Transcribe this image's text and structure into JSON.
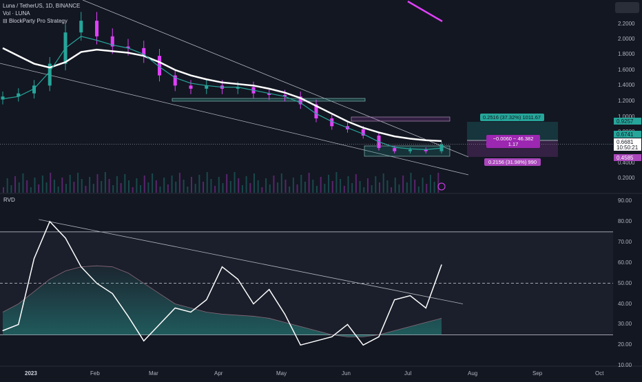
{
  "legend": {
    "symbol": "Luna / TetherUS, 1D, BINANCE",
    "volume": "Vol · LUNA",
    "strategy": "BlockParty Pro Strategy"
  },
  "rvd_label": "RVD",
  "price_axis": {
    "ticks": [
      "2.2000",
      "2.0000",
      "1.8000",
      "1.6000",
      "1.4000",
      "1.2000",
      "1.0000",
      "0.8000",
      "0.4000",
      "0.2000"
    ],
    "badges": [
      {
        "label": "0.9257",
        "color": "#26a69a"
      },
      {
        "label": "0.6741",
        "color": "#26a69a"
      },
      {
        "label": "0.6681",
        "color": "#ffffff"
      },
      {
        "label": "10:50:21",
        "color": "#ffffff"
      },
      {
        "label": "0.4585",
        "color": "#ab47bc"
      }
    ]
  },
  "rvd_axis": {
    "ticks": [
      "90.00",
      "80.00",
      "70.00",
      "60.00",
      "50.00",
      "40.00",
      "30.00",
      "20.00",
      "10.00"
    ]
  },
  "time_axis": {
    "labels": [
      "2023",
      "Feb",
      "Mar",
      "Apr",
      "May",
      "Jun",
      "Jul",
      "Aug",
      "Sep",
      "Oct"
    ]
  },
  "measure_tool": {
    "upper": "0.2516 (37.32%) 1011.67",
    "middle_line1": "−0.0060 ~ 46.382",
    "middle_line2": "1.17",
    "lower": "0.2156 (31.98%) 990"
  },
  "colors": {
    "up": "#26a69a",
    "down": "#e040fb",
    "ma_white": "#ffffff",
    "ma_green": "#26a69a",
    "background": "#131722"
  },
  "chart_data": [
    {
      "type": "line",
      "title": "Luna / TetherUS, 1D, BINANCE",
      "ylabel": "",
      "x": [
        "2023-01-01",
        "2023-01-08",
        "2023-01-15",
        "2023-01-22",
        "2023-01-29",
        "2023-02-05",
        "2023-02-12",
        "2023-02-19",
        "2023-02-26",
        "2023-03-05",
        "2023-03-12",
        "2023-03-19",
        "2023-03-26",
        "2023-04-02",
        "2023-04-09",
        "2023-04-16",
        "2023-04-23",
        "2023-04-30",
        "2023-05-07",
        "2023-05-14",
        "2023-05-21",
        "2023-05-28",
        "2023-06-04",
        "2023-06-11",
        "2023-06-18",
        "2023-06-25",
        "2023-07-02",
        "2023-07-09",
        "2023-07-16"
      ],
      "ylim": [
        0.1,
        2.4
      ],
      "series": [
        {
          "values": [
            1.28,
            1.32,
            1.42,
            1.7,
            2.1,
            2.25,
            2.05,
            1.92,
            1.9,
            1.8,
            1.55,
            1.42,
            1.38,
            1.42,
            1.38,
            1.4,
            1.32,
            1.3,
            1.28,
            1.18,
            1.0,
            0.9,
            0.86,
            0.78,
            0.62,
            0.58,
            0.6,
            0.58,
            0.6681
          ]
        },
        {
          "values": [
            1.9,
            1.8,
            1.7,
            1.65,
            1.72,
            1.85,
            1.88,
            1.86,
            1.84,
            1.8,
            1.72,
            1.62,
            1.55,
            1.5,
            1.46,
            1.44,
            1.42,
            1.38,
            1.33,
            1.26,
            1.16,
            1.06,
            0.96,
            0.88,
            0.82,
            0.77,
            0.74,
            0.72,
            0.71
          ]
        },
        {
          "values": [
            1.25,
            1.28,
            1.38,
            1.6,
            1.9,
            2.05,
            2.0,
            1.94,
            1.9,
            1.82,
            1.66,
            1.52,
            1.45,
            1.42,
            1.4,
            1.4,
            1.36,
            1.32,
            1.28,
            1.2,
            1.06,
            0.96,
            0.88,
            0.8,
            0.7,
            0.63,
            0.61,
            0.6,
            0.62
          ]
        }
      ]
    },
    {
      "type": "line",
      "title": "RVD",
      "ylabel": "",
      "x": [
        "2023-01-01",
        "2023-01-08",
        "2023-01-15",
        "2023-01-22",
        "2023-01-29",
        "2023-02-05",
        "2023-02-12",
        "2023-02-19",
        "2023-02-26",
        "2023-03-05",
        "2023-03-12",
        "2023-03-19",
        "2023-03-26",
        "2023-04-02",
        "2023-04-09",
        "2023-04-16",
        "2023-04-23",
        "2023-04-30",
        "2023-05-07",
        "2023-05-14",
        "2023-05-21",
        "2023-05-28",
        "2023-06-04",
        "2023-06-11",
        "2023-06-18",
        "2023-06-25",
        "2023-07-02",
        "2023-07-09",
        "2023-07-16"
      ],
      "ylim": [
        8,
        92
      ],
      "series": [
        {
          "values": [
            27,
            30,
            62,
            80,
            72,
            58,
            50,
            45,
            34,
            22,
            30,
            38,
            36,
            42,
            58,
            52,
            40,
            47,
            35,
            20,
            22,
            24,
            30,
            20,
            24,
            42,
            44,
            38,
            59
          ]
        },
        {
          "values": [
            36,
            40,
            46,
            52,
            56,
            58,
            58.5,
            58,
            55,
            50,
            45,
            40,
            38,
            36,
            35,
            34.5,
            34,
            33,
            31,
            29,
            27,
            25,
            24,
            24,
            25,
            27,
            29,
            31,
            33
          ]
        }
      ]
    }
  ]
}
